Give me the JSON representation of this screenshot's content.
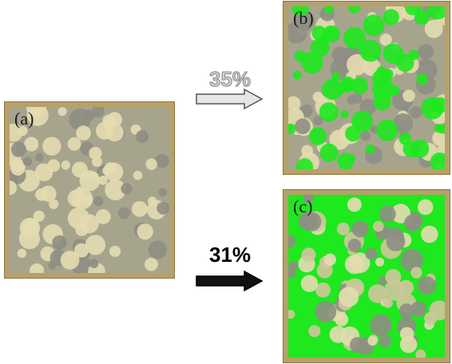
{
  "panels": {
    "a": {
      "label": "(a)"
    },
    "b": {
      "label": "(b)"
    },
    "c": {
      "label": "(c)"
    }
  },
  "annotations": {
    "top_percent": "35%",
    "bottom_percent": "31%"
  },
  "colors": {
    "frame": "#b8a06a",
    "substrate": "#a6a48e",
    "light_drop": "#e4dcb0",
    "dark_drop": "#8f8e84",
    "highlight_green": "#1ee81e",
    "arrow_top_fill": "#e6e6e6",
    "arrow_bottom_fill": "#111111"
  }
}
